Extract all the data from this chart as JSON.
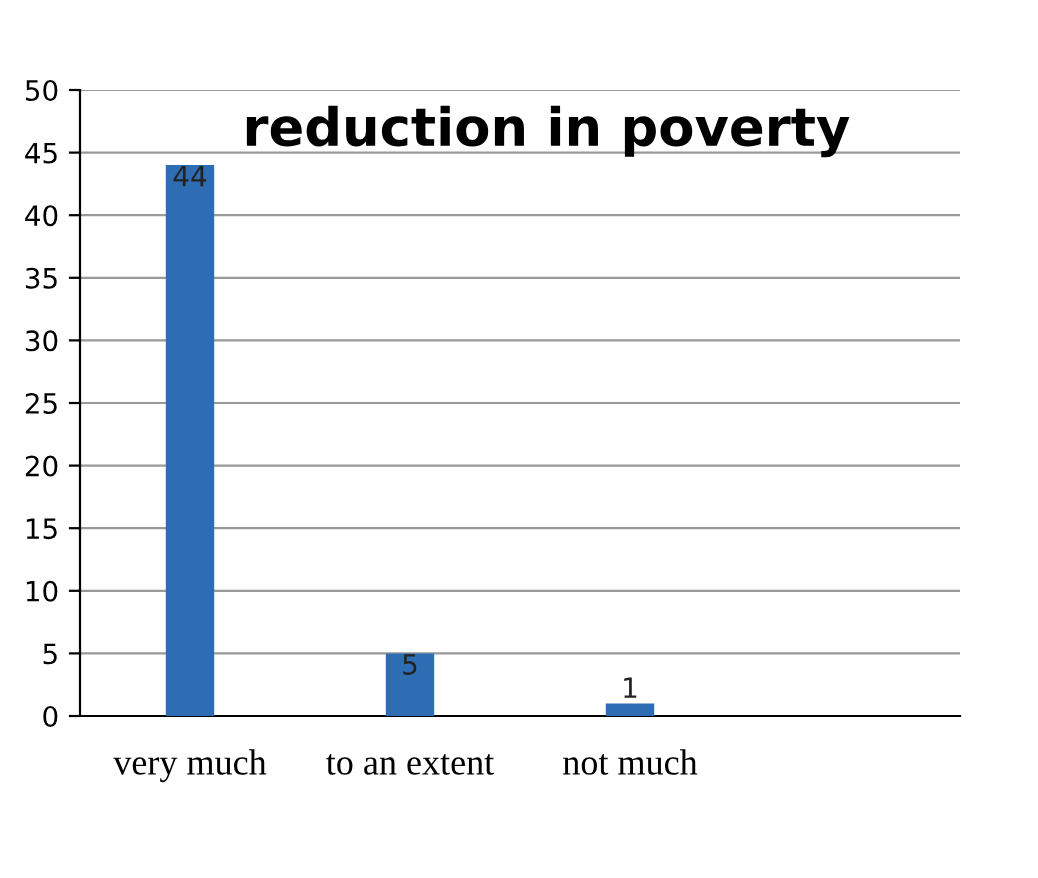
{
  "chart_data": {
    "type": "bar",
    "title": "reduction in poverty",
    "categories": [
      "very much",
      "to an extent",
      "not much",
      null
    ],
    "values": [
      44,
      5,
      1,
      null
    ],
    "color": "#2e6db4",
    "ylim": [
      0,
      50
    ],
    "yticks": [
      0,
      5,
      10,
      15,
      20,
      25,
      30,
      35,
      40,
      45,
      50
    ],
    "grid": "y",
    "data_labels": true
  }
}
